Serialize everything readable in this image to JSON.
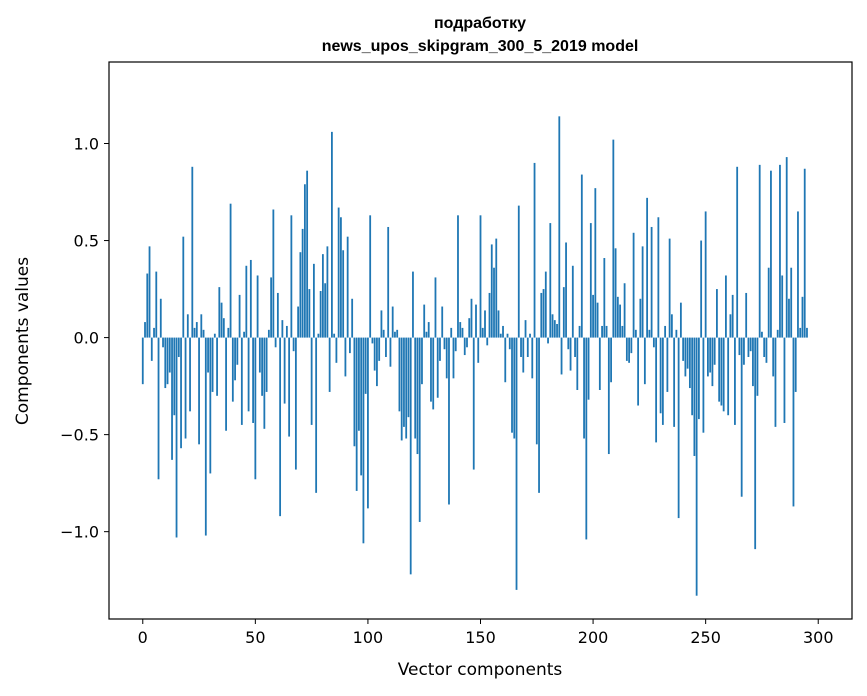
{
  "chart_data": {
    "type": "bar",
    "title_line1": "подработку",
    "title_line2": "news_upos_skipgram_300_5_2019 model",
    "xlabel": "Vector components",
    "ylabel": "Components values",
    "xlim": [
      -15,
      315
    ],
    "ylim": [
      -1.45,
      1.42
    ],
    "x_ticks": [
      0,
      50,
      100,
      150,
      200,
      250,
      300
    ],
    "x_tick_labels": [
      "0",
      "50",
      "100",
      "150",
      "200",
      "250",
      "300"
    ],
    "y_ticks": [
      -1.0,
      -0.5,
      0.0,
      0.5,
      1.0
    ],
    "y_tick_labels": [
      "−1.0",
      "−0.5",
      "0.0",
      "0.5",
      "1.0"
    ],
    "grid": false,
    "bar_color": "#1f77b4",
    "values": [
      -0.24,
      0.08,
      0.33,
      0.47,
      -0.12,
      0.05,
      0.34,
      -0.73,
      0.2,
      -0.05,
      -0.26,
      -0.24,
      -0.18,
      -0.63,
      -0.4,
      -1.03,
      -0.1,
      -0.57,
      0.52,
      -0.52,
      0.12,
      -0.38,
      0.88,
      0.05,
      0.08,
      -0.55,
      0.12,
      0.04,
      -1.02,
      -0.18,
      -0.7,
      -0.28,
      0.02,
      -0.3,
      0.26,
      0.18,
      0.1,
      -0.48,
      0.05,
      0.69,
      -0.33,
      -0.22,
      -0.14,
      0.22,
      -0.45,
      0.03,
      0.37,
      -0.38,
      0.4,
      -0.44,
      -0.73,
      0.32,
      -0.18,
      -0.3,
      -0.47,
      -0.28,
      0.04,
      0.31,
      0.66,
      -0.05,
      0.23,
      -0.92,
      0.09,
      -0.34,
      0.06,
      -0.51,
      0.63,
      -0.07,
      -0.68,
      0.16,
      0.44,
      0.56,
      0.79,
      0.86,
      0.25,
      -0.45,
      0.38,
      -0.8,
      0.02,
      0.24,
      0.43,
      0.28,
      0.47,
      -0.28,
      1.06,
      0.02,
      -0.13,
      0.67,
      0.62,
      0.45,
      -0.2,
      0.52,
      -0.08,
      0.2,
      -0.56,
      -0.79,
      -0.48,
      -0.71,
      -1.06,
      -0.29,
      -0.88,
      0.63,
      -0.03,
      -0.17,
      -0.25,
      -0.12,
      0.14,
      0.04,
      -0.1,
      0.57,
      -0.15,
      0.16,
      0.03,
      0.04,
      -0.38,
      -0.53,
      -0.46,
      -0.52,
      -0.41,
      -1.22,
      0.34,
      -0.52,
      -0.6,
      -0.95,
      -0.24,
      0.17,
      0.03,
      0.08,
      -0.33,
      -0.37,
      0.31,
      -0.31,
      -0.12,
      0.16,
      -0.06,
      -0.21,
      -0.86,
      0.05,
      -0.21,
      -0.07,
      0.63,
      0.08,
      0.05,
      -0.09,
      -0.05,
      0.1,
      0.2,
      -0.68,
      0.17,
      -0.13,
      0.63,
      0.05,
      0.14,
      -0.04,
      0.23,
      0.48,
      0.36,
      0.51,
      0.14,
      0.02,
      0.06,
      -0.23,
      0.02,
      -0.06,
      -0.49,
      -0.52,
      -1.3,
      0.68,
      -0.1,
      -0.18,
      0.09,
      -0.1,
      0.02,
      -0.21,
      0.9,
      -0.55,
      -0.8,
      0.23,
      0.25,
      0.34,
      -0.03,
      0.59,
      0.12,
      0.09,
      0.07,
      1.14,
      -0.19,
      0.26,
      0.49,
      -0.06,
      -0.17,
      0.37,
      -0.1,
      -0.27,
      0.06,
      0.84,
      -0.52,
      -1.04,
      -0.32,
      0.59,
      0.22,
      0.77,
      0.18,
      -0.27,
      0.06,
      0.41,
      0.06,
      -0.6,
      -0.23,
      1.02,
      0.46,
      0.21,
      0.17,
      0.06,
      0.28,
      -0.12,
      -0.13,
      -0.08,
      0.54,
      0.04,
      -0.35,
      0.2,
      0.47,
      -0.24,
      0.72,
      0.04,
      0.57,
      -0.05,
      -0.54,
      0.62,
      -0.39,
      -0.45,
      0.06,
      -0.28,
      0.51,
      0.12,
      -0.46,
      0.04,
      -0.93,
      0.18,
      -0.12,
      -0.2,
      -0.16,
      -0.26,
      -0.4,
      -0.61,
      -1.33,
      -0.42,
      0.5,
      -0.49,
      0.65,
      -0.2,
      -0.18,
      -0.25,
      -0.14,
      0.25,
      -0.33,
      -0.35,
      -0.38,
      0.32,
      -0.4,
      0.12,
      0.22,
      -0.45,
      0.88,
      -0.09,
      -0.82,
      -0.14,
      0.23,
      -0.1,
      -0.07,
      -0.25,
      -1.09,
      -0.3,
      0.89,
      0.03,
      -0.1,
      -0.13,
      0.36,
      0.86,
      -0.2,
      -0.46,
      0.04,
      0.89,
      0.32,
      -0.44,
      0.93,
      0.2,
      0.36,
      -0.87,
      -0.28,
      0.65,
      0.05,
      0.21,
      0.87,
      0.05
    ]
  }
}
